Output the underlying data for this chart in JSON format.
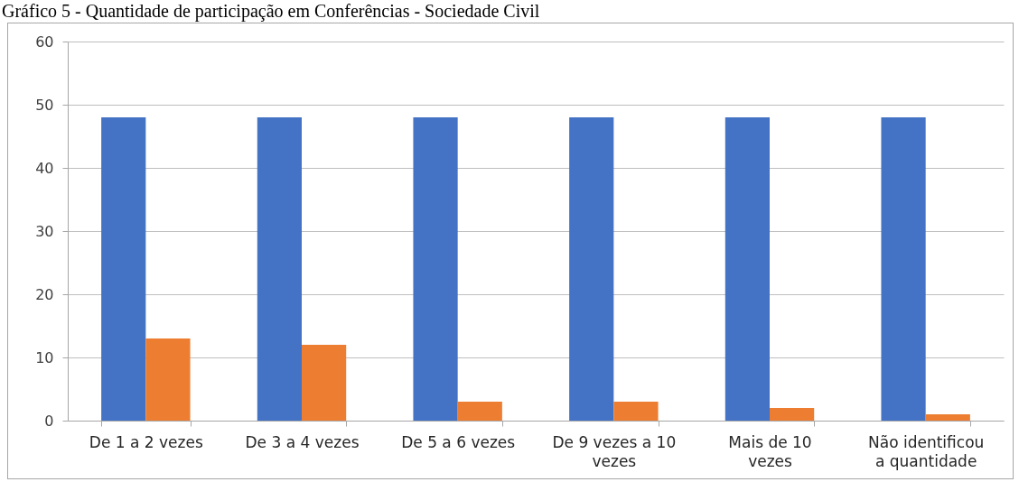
{
  "chart_data": {
    "type": "bar",
    "title": "Gráfico 5 - Quantidade de participação em Conferências - Sociedade Civil",
    "categories": [
      "De 1 a 2 vezes",
      "De 3 a 4 vezes",
      "De 5 a 6 vezes",
      "De 9 vezes a 10 vezes",
      "Mais de 10 vezes",
      "Não identificou a quantidade"
    ],
    "series": [
      {
        "color": "#4472c4",
        "values": [
          48,
          48,
          48,
          48,
          48,
          48
        ]
      },
      {
        "color": "#ed7d31",
        "values": [
          13,
          12,
          3,
          3,
          2,
          1
        ]
      }
    ],
    "ylim": [
      0,
      60
    ],
    "yticks": [
      0,
      10,
      20,
      30,
      40,
      50,
      60
    ],
    "grid": "y"
  }
}
